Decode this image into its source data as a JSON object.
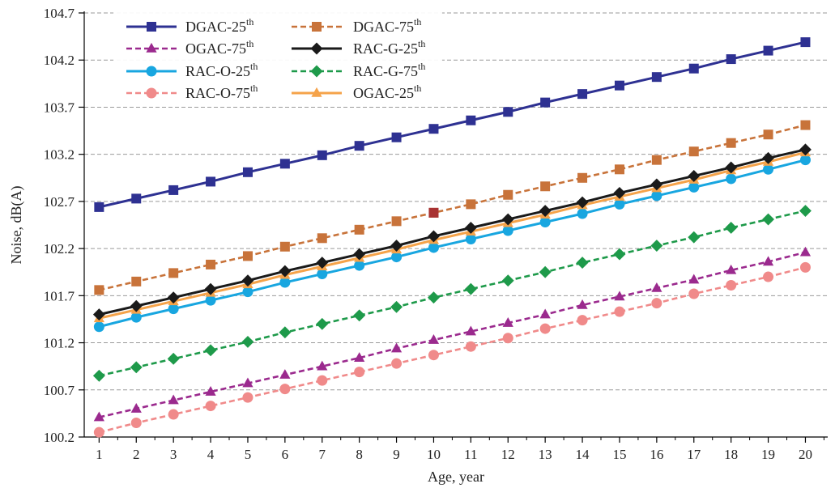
{
  "chart_data": {
    "type": "line",
    "xlabel": "Age, year",
    "ylabel": "Noise, dB(A)",
    "x": [
      1,
      2,
      3,
      4,
      5,
      6,
      7,
      8,
      9,
      10,
      11,
      12,
      13,
      14,
      15,
      16,
      17,
      18,
      19,
      20
    ],
    "xlim": [
      0.6,
      20.6
    ],
    "ylim": [
      100.2,
      104.7
    ],
    "yticks": [
      100.2,
      100.7,
      101.2,
      101.7,
      102.2,
      102.7,
      103.2,
      103.7,
      104.2,
      104.7
    ],
    "grid": {
      "y": true,
      "style": "dashed",
      "color": "#9a9a9a"
    },
    "legend": {
      "position": "top-left",
      "columns": 2
    },
    "series": [
      {
        "name": "DGAC-25",
        "sup": "th",
        "color": "#2e3192",
        "dash": "solid",
        "marker": "square",
        "values": [
          102.64,
          102.73,
          102.82,
          102.91,
          103.01,
          103.1,
          103.19,
          103.29,
          103.38,
          103.47,
          103.56,
          103.65,
          103.75,
          103.84,
          103.93,
          104.02,
          104.11,
          104.21,
          104.3,
          104.39
        ]
      },
      {
        "name": "DGAC-75",
        "sup": "th",
        "color": "#c8733a",
        "dash": "dashed",
        "marker": "square",
        "values": [
          101.76,
          101.85,
          101.94,
          102.03,
          102.12,
          102.22,
          102.31,
          102.4,
          102.49,
          102.58,
          102.67,
          102.77,
          102.86,
          102.95,
          103.04,
          103.14,
          103.23,
          103.32,
          103.41,
          103.51
        ]
      },
      {
        "name": "OGAC-75",
        "sup": "th",
        "color": "#9b2a8e",
        "dash": "dashed",
        "marker": "triangle",
        "values": [
          100.41,
          100.5,
          100.59,
          100.68,
          100.77,
          100.86,
          100.95,
          101.04,
          101.14,
          101.23,
          101.32,
          101.41,
          101.5,
          101.6,
          101.69,
          101.78,
          101.87,
          101.97,
          102.06,
          102.16
        ]
      },
      {
        "name": "RAC-G-25",
        "sup": "th",
        "color": "#1a1a1a",
        "dash": "solid",
        "marker": "diamond",
        "values": [
          101.5,
          101.59,
          101.68,
          101.77,
          101.86,
          101.96,
          102.05,
          102.14,
          102.23,
          102.33,
          102.42,
          102.51,
          102.6,
          102.69,
          102.79,
          102.88,
          102.97,
          103.06,
          103.16,
          103.25
        ]
      },
      {
        "name": "RAC-O-25",
        "sup": "th",
        "color": "#18a6e0",
        "dash": "solid",
        "marker": "circle",
        "values": [
          101.37,
          101.47,
          101.56,
          101.65,
          101.74,
          101.84,
          101.93,
          102.02,
          102.11,
          102.21,
          102.3,
          102.39,
          102.48,
          102.57,
          102.67,
          102.76,
          102.85,
          102.94,
          103.04,
          103.14
        ]
      },
      {
        "name": "RAC-G-75",
        "sup": "th",
        "color": "#1e9a4a",
        "dash": "dashed",
        "marker": "diamond",
        "values": [
          100.85,
          100.94,
          101.03,
          101.12,
          101.21,
          101.31,
          101.4,
          101.49,
          101.58,
          101.68,
          101.77,
          101.86,
          101.95,
          102.05,
          102.14,
          102.23,
          102.32,
          102.42,
          102.51,
          102.6
        ]
      },
      {
        "name": "RAC-O-75",
        "sup": "th",
        "color": "#f08a8a",
        "dash": "dashed",
        "marker": "circle",
        "values": [
          100.25,
          100.35,
          100.44,
          100.53,
          100.62,
          100.71,
          100.8,
          100.89,
          100.98,
          101.07,
          101.16,
          101.25,
          101.35,
          101.44,
          101.53,
          101.62,
          101.72,
          101.81,
          101.9,
          102.0
        ]
      },
      {
        "name": "OGAC-25",
        "sup": "th",
        "color": "#f5a34a",
        "dash": "solid",
        "marker": "triangle",
        "values": [
          101.46,
          101.55,
          101.64,
          101.73,
          101.82,
          101.92,
          102.01,
          102.1,
          102.19,
          102.29,
          102.38,
          102.47,
          102.56,
          102.66,
          102.75,
          102.84,
          102.93,
          103.03,
          103.12,
          103.22
        ]
      }
    ],
    "annotations": [
      {
        "x": 10,
        "y": 102.58,
        "marker": "square",
        "color": "#a83232"
      }
    ]
  }
}
